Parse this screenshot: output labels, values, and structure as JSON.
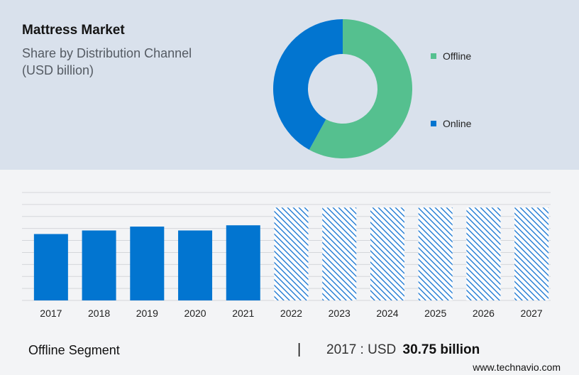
{
  "header": {
    "title": "Mattress Market",
    "subtitle_line1": "Share by Distribution Channel",
    "subtitle_line2": "(USD billion)"
  },
  "colors": {
    "offline": "#55c08f",
    "online": "#0275d0",
    "bar": "#0275d0",
    "hatch": "#1f7ad3"
  },
  "chart_data": [
    {
      "type": "pie",
      "variant": "donut",
      "labels": [
        "Offline",
        "Online"
      ],
      "values": [
        58,
        42
      ],
      "legend": [
        "Offline",
        "Online"
      ],
      "legend_placement": "right"
    },
    {
      "type": "bar",
      "categories": [
        "2017",
        "2018",
        "2019",
        "2020",
        "2021",
        "2022",
        "2023",
        "2024",
        "2025",
        "2026",
        "2027"
      ],
      "values": [
        30.75,
        32.4,
        34.2,
        32.4,
        34.8,
        43,
        43,
        43,
        43,
        43,
        43
      ],
      "forecast_from": "2022",
      "ylim": [
        0,
        50
      ],
      "grid": true
    }
  ],
  "footer": {
    "segment_label": "Offline Segment",
    "separator": "|",
    "value_prefix": "2017 : USD",
    "value_bold": "30.75 billion",
    "source": "www.technavio.com"
  }
}
